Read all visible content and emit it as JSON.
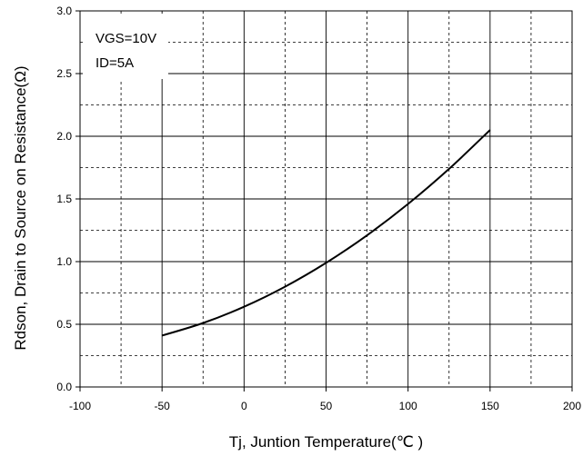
{
  "chart_data": {
    "type": "line",
    "title": "",
    "xlabel": "Tj,  Juntion Temperature(℃ )",
    "ylabel": "Rdson, Drain to Source on Resistance(Ω)",
    "xlim": [
      -100,
      200
    ],
    "ylim": [
      0.0,
      3.0
    ],
    "x_ticks": [
      "-100",
      "-50",
      "0",
      "50",
      "100",
      "150",
      "200"
    ],
    "y_ticks": [
      "0.0",
      "0.5",
      "1.0",
      "1.5",
      "2.0",
      "2.5",
      "3.0"
    ],
    "grid": true,
    "annotations": [
      "VGS=10V",
      "ID=5A"
    ],
    "series": [
      {
        "x": [
          -50,
          -25,
          0,
          25,
          50,
          75,
          100,
          125,
          150
        ],
        "values": [
          0.41,
          0.51,
          0.64,
          0.8,
          0.99,
          1.21,
          1.46,
          1.74,
          2.05
        ]
      }
    ]
  },
  "colors": {
    "line": "#000000",
    "grid": "#000000",
    "background": "#ffffff"
  }
}
